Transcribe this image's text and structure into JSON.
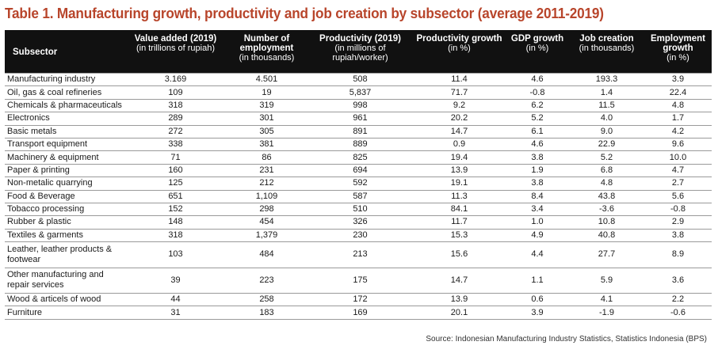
{
  "title": "Table 1. Manufacturing growth, productivity and job creation by subsector (average 2011-2019)",
  "headers": [
    {
      "main": "Subsector",
      "sub": ""
    },
    {
      "main": "Value added (2019)",
      "sub": "(in trillions of rupiah)"
    },
    {
      "main": "Number of employment",
      "sub": "(in thousands)"
    },
    {
      "main": "Productivity (2019)",
      "sub": "(in millions of rupiah/worker)"
    },
    {
      "main": "Productivity growth",
      "sub": "(in %)"
    },
    {
      "main": "GDP growth",
      "sub": "(in %)"
    },
    {
      "main": "Job creation",
      "sub": "(in thousands)"
    },
    {
      "main": "Employment growth",
      "sub": "(in %)"
    }
  ],
  "rows": [
    [
      "Manufacturing industry",
      "3.169",
      "4.501",
      "508",
      "11.4",
      "4.6",
      "193.3",
      "3.9"
    ],
    [
      "Oil, gas & coal refineries",
      "109",
      "19",
      "5,837",
      "71.7",
      "-0.8",
      "1.4",
      "22.4"
    ],
    [
      "Chemicals & pharmaceuticals",
      "318",
      "319",
      "998",
      "9.2",
      "6.2",
      "11.5",
      "4.8"
    ],
    [
      "Electronics",
      "289",
      "301",
      "961",
      "20.2",
      "5.2",
      "4.0",
      "1.7"
    ],
    [
      "Basic metals",
      "272",
      "305",
      "891",
      "14.7",
      "6.1",
      "9.0",
      "4.2"
    ],
    [
      "Transport equipment",
      "338",
      "381",
      "889",
      "0.9",
      "4.6",
      "22.9",
      "9.6"
    ],
    [
      "Machinery & equipment",
      "71",
      "86",
      "825",
      "19.4",
      "3.8",
      "5.2",
      "10.0"
    ],
    [
      "Paper & printing",
      "160",
      "231",
      "694",
      "13.9",
      "1.9",
      "6.8",
      "4.7"
    ],
    [
      "Non-metalic quarrying",
      "125",
      "212",
      "592",
      "19.1",
      "3.8",
      "4.8",
      "2.7"
    ],
    [
      "Food & Beverage",
      "651",
      "1,109",
      "587",
      "11.3",
      "8.4",
      "43.8",
      "5.6"
    ],
    [
      "Tobacco processing",
      "152",
      "298",
      "510",
      "84.1",
      "3.4",
      "-3.6",
      "-0.8"
    ],
    [
      "Rubber & plastic",
      "148",
      "454",
      "326",
      "11.7",
      "1.0",
      "10.8",
      "2.9"
    ],
    [
      "Textiles & garments",
      "318",
      "1,379",
      "230",
      "15.3",
      "4.9",
      "40.8",
      "3.8"
    ],
    [
      "Leather, leather products & footwear",
      "103",
      "484",
      "213",
      "15.6",
      "4.4",
      "27.7",
      "8.9"
    ],
    [
      "Other manufacturing and repair services",
      "39",
      "223",
      "175",
      "14.7",
      "1.1",
      "5.9",
      "3.6"
    ],
    [
      "Wood & articels of wood",
      "44",
      "258",
      "172",
      "13.9",
      "0.6",
      "4.1",
      "2.2"
    ],
    [
      "Furniture",
      "31",
      "183",
      "169",
      "20.1",
      "3.9",
      "-1.9",
      "-0.6"
    ]
  ],
  "source": "Source: Indonesian Manufacturing Industry Statistics, Statistics Indonesia (BPS)",
  "colors": {
    "title": "#b8452b",
    "header_bg": "#111111",
    "header_text": "#ffffff"
  }
}
